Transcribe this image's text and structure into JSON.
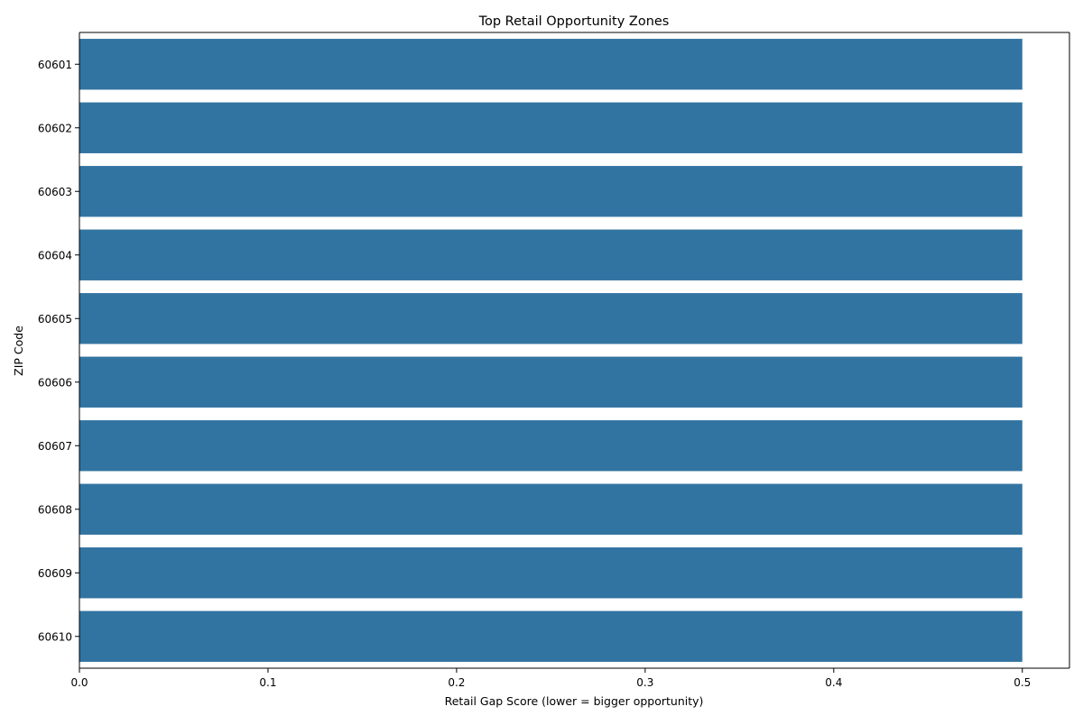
{
  "chart_data": {
    "type": "bar",
    "orientation": "horizontal",
    "title": "Top Retail Opportunity Zones",
    "xlabel": "Retail Gap Score (lower = bigger opportunity)",
    "ylabel": "ZIP Code",
    "categories": [
      "60601",
      "60602",
      "60603",
      "60604",
      "60605",
      "60606",
      "60607",
      "60608",
      "60609",
      "60610"
    ],
    "values": [
      0.5,
      0.5,
      0.5,
      0.5,
      0.5,
      0.5,
      0.5,
      0.5,
      0.5,
      0.5
    ],
    "xlim": [
      0,
      0.525
    ],
    "xticks": [
      "0.0",
      "0.1",
      "0.2",
      "0.3",
      "0.4",
      "0.5"
    ],
    "bar_color": "#3274a1",
    "grid": false,
    "legend": "none"
  }
}
